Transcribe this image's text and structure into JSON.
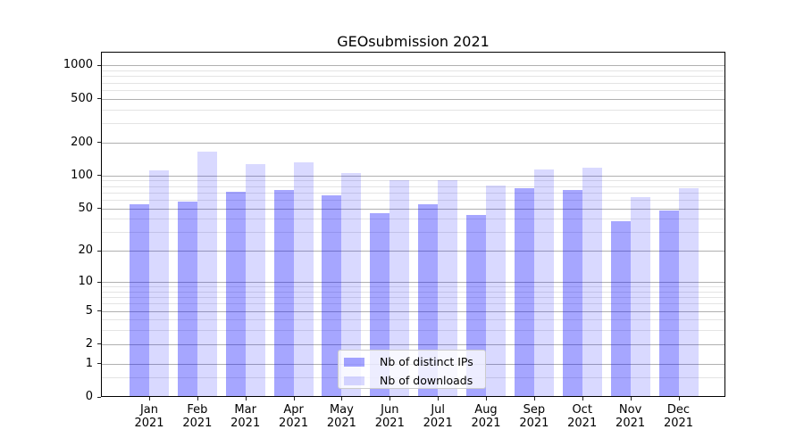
{
  "title": "GEOsubmission 2021",
  "chart_data": {
    "type": "bar",
    "title": "GEOsubmission 2021",
    "categories": [
      "Jan",
      "Feb",
      "Mar",
      "Apr",
      "May",
      "Jun",
      "Jul",
      "Aug",
      "Sep",
      "Oct",
      "Nov",
      "Dec"
    ],
    "category_year": "2021",
    "series": [
      {
        "name": "Nb of distinct IPs",
        "color": "rgba(0,0,255,0.35)",
        "values": [
          54,
          58,
          71,
          73,
          66,
          45,
          54,
          43,
          77,
          74,
          38,
          48
        ]
      },
      {
        "name": "Nb of downloads",
        "color": "rgba(0,0,255,0.15)",
        "values": [
          112,
          164,
          127,
          132,
          105,
          91,
          91,
          81,
          113,
          117,
          63,
          77
        ]
      }
    ],
    "xlabel": "",
    "ylabel": "",
    "yscale": "symlog (y proportional to log10(1+value))",
    "y_major_ticks": [
      0,
      1,
      2,
      5,
      10,
      20,
      50,
      100,
      200,
      500,
      1000
    ],
    "y_minor_ticks": [
      0.5,
      3,
      4,
      6,
      7,
      8,
      9,
      30,
      40,
      60,
      70,
      80,
      90,
      300,
      400,
      600,
      700,
      800,
      900
    ],
    "ylim": [
      0,
      1300
    ],
    "grid": "horizontal, major and minor, below bars",
    "legend_position": "inside plot, bottom center"
  },
  "legend": {
    "items": [
      {
        "label": "Nb of distinct IPs",
        "color": "rgba(0,0,255,0.35)"
      },
      {
        "label": "Nb of downloads",
        "color": "rgba(0,0,255,0.15)"
      }
    ]
  },
  "colors": {
    "bar_distinct_ips_on_white": "#a6a6ff",
    "bar_downloads_on_white": "#d9d9ff",
    "grid_major": "#b0b0b0",
    "grid_minor": "#e4e4e4",
    "spine": "#000000",
    "background": "#ffffff"
  }
}
